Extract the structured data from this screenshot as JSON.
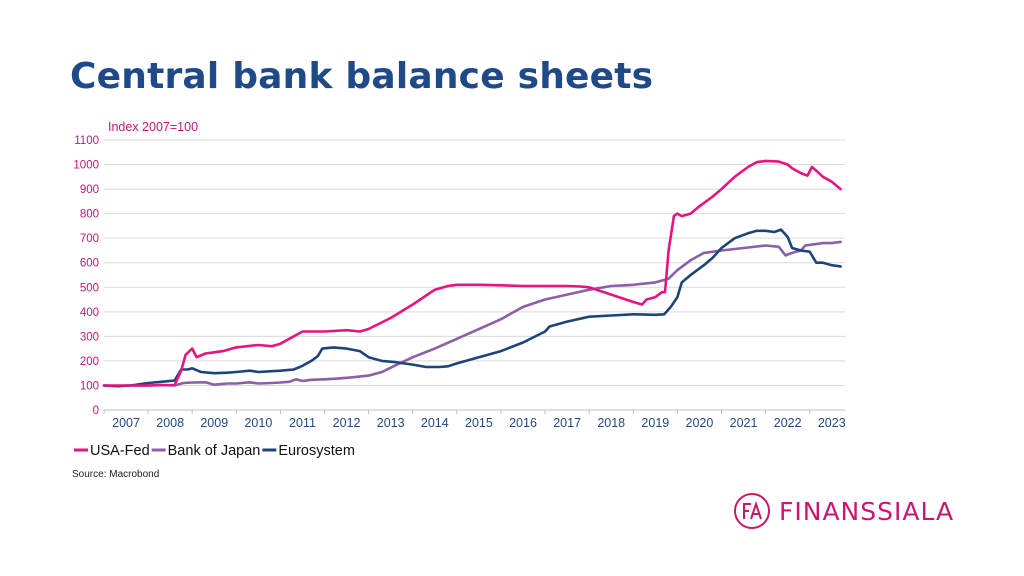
{
  "title": "Central bank balance sheets",
  "source": "Source: Macrobond",
  "logo": {
    "mark": "FA",
    "text": "FINANSSIALA",
    "color": "#c9176f"
  },
  "colors": {
    "title": "#1f4a87",
    "axis_text": "#c0187a",
    "usa": "#e5157f",
    "japan": "#8c5fa6",
    "euro": "#1d4478",
    "grid": "#d9d9d9",
    "year_text": "#1f4a87"
  },
  "chart_data": {
    "type": "line",
    "title": "",
    "ylabel": "Index 2007=100",
    "xlabel": "",
    "ylim": [
      0,
      1100
    ],
    "yticks": [
      0,
      100,
      200,
      300,
      400,
      500,
      600,
      700,
      800,
      900,
      1000,
      1100
    ],
    "xlim": [
      2007.0,
      2023.8
    ],
    "xticks": [
      "2007",
      "2008",
      "2009",
      "2010",
      "2011",
      "2012",
      "2013",
      "2014",
      "2015",
      "2016",
      "2017",
      "2018",
      "2019",
      "2020",
      "2021",
      "2022",
      "2023"
    ],
    "grid": true,
    "legend": "bottom-left",
    "series": [
      {
        "name": "USA-Fed",
        "points": [
          [
            2007.0,
            100
          ],
          [
            2007.5,
            100
          ],
          [
            2008.0,
            100
          ],
          [
            2008.6,
            102
          ],
          [
            2008.75,
            160
          ],
          [
            2008.85,
            225
          ],
          [
            2009.0,
            250
          ],
          [
            2009.1,
            215
          ],
          [
            2009.3,
            230
          ],
          [
            2009.5,
            235
          ],
          [
            2009.7,
            240
          ],
          [
            2010.0,
            255
          ],
          [
            2010.5,
            265
          ],
          [
            2010.8,
            260
          ],
          [
            2011.0,
            270
          ],
          [
            2011.3,
            300
          ],
          [
            2011.5,
            320
          ],
          [
            2011.8,
            320
          ],
          [
            2012.0,
            320
          ],
          [
            2012.5,
            325
          ],
          [
            2012.8,
            320
          ],
          [
            2013.0,
            330
          ],
          [
            2013.5,
            375
          ],
          [
            2014.0,
            430
          ],
          [
            2014.5,
            490
          ],
          [
            2014.8,
            505
          ],
          [
            2015.0,
            510
          ],
          [
            2015.5,
            510
          ],
          [
            2016.0,
            508
          ],
          [
            2016.5,
            505
          ],
          [
            2017.0,
            505
          ],
          [
            2017.5,
            505
          ],
          [
            2017.8,
            503
          ],
          [
            2018.0,
            500
          ],
          [
            2018.5,
            470
          ],
          [
            2019.0,
            440
          ],
          [
            2019.2,
            430
          ],
          [
            2019.3,
            450
          ],
          [
            2019.5,
            460
          ],
          [
            2019.65,
            480
          ],
          [
            2019.72,
            480
          ],
          [
            2019.8,
            650
          ],
          [
            2019.92,
            790
          ],
          [
            2020.0,
            800
          ],
          [
            2020.1,
            790
          ],
          [
            2020.3,
            800
          ],
          [
            2020.5,
            830
          ],
          [
            2020.8,
            870
          ],
          [
            2021.0,
            900
          ],
          [
            2021.3,
            950
          ],
          [
            2021.6,
            990
          ],
          [
            2021.8,
            1010
          ],
          [
            2022.0,
            1015
          ],
          [
            2022.3,
            1012
          ],
          [
            2022.5,
            1000
          ],
          [
            2022.6,
            985
          ],
          [
            2022.8,
            965
          ],
          [
            2022.95,
            955
          ],
          [
            2023.05,
            990
          ],
          [
            2023.15,
            975
          ],
          [
            2023.3,
            950
          ],
          [
            2023.5,
            930
          ],
          [
            2023.7,
            900
          ]
        ]
      },
      {
        "name": "Bank of Japan",
        "points": [
          [
            2007.0,
            100
          ],
          [
            2007.3,
            98
          ],
          [
            2007.6,
            100
          ],
          [
            2008.0,
            100
          ],
          [
            2008.3,
            102
          ],
          [
            2008.6,
            100
          ],
          [
            2008.8,
            110
          ],
          [
            2009.0,
            112
          ],
          [
            2009.3,
            113
          ],
          [
            2009.5,
            103
          ],
          [
            2009.8,
            108
          ],
          [
            2010.0,
            108
          ],
          [
            2010.3,
            113
          ],
          [
            2010.5,
            108
          ],
          [
            2010.8,
            110
          ],
          [
            2011.0,
            112
          ],
          [
            2011.2,
            115
          ],
          [
            2011.35,
            125
          ],
          [
            2011.5,
            118
          ],
          [
            2011.7,
            123
          ],
          [
            2012.0,
            125
          ],
          [
            2012.3,
            128
          ],
          [
            2012.6,
            133
          ],
          [
            2013.0,
            140
          ],
          [
            2013.3,
            155
          ],
          [
            2013.7,
            190
          ],
          [
            2014.0,
            215
          ],
          [
            2014.5,
            250
          ],
          [
            2015.0,
            290
          ],
          [
            2015.5,
            330
          ],
          [
            2016.0,
            370
          ],
          [
            2016.5,
            420
          ],
          [
            2017.0,
            450
          ],
          [
            2017.5,
            470
          ],
          [
            2018.0,
            490
          ],
          [
            2018.5,
            505
          ],
          [
            2019.0,
            510
          ],
          [
            2019.5,
            520
          ],
          [
            2019.8,
            535
          ],
          [
            2020.0,
            570
          ],
          [
            2020.3,
            610
          ],
          [
            2020.6,
            640
          ],
          [
            2021.0,
            650
          ],
          [
            2021.5,
            660
          ],
          [
            2022.0,
            670
          ],
          [
            2022.3,
            665
          ],
          [
            2022.45,
            630
          ],
          [
            2022.6,
            640
          ],
          [
            2022.8,
            650
          ],
          [
            2022.9,
            670
          ],
          [
            2023.1,
            675
          ],
          [
            2023.3,
            680
          ],
          [
            2023.5,
            680
          ],
          [
            2023.7,
            685
          ]
        ]
      },
      {
        "name": "Eurosystem",
        "points": [
          [
            2007.0,
            100
          ],
          [
            2007.3,
            97
          ],
          [
            2007.6,
            100
          ],
          [
            2008.0,
            110
          ],
          [
            2008.3,
            115
          ],
          [
            2008.6,
            120
          ],
          [
            2008.75,
            165
          ],
          [
            2008.9,
            165
          ],
          [
            2009.0,
            170
          ],
          [
            2009.2,
            155
          ],
          [
            2009.5,
            150
          ],
          [
            2009.8,
            152
          ],
          [
            2010.0,
            155
          ],
          [
            2010.3,
            160
          ],
          [
            2010.5,
            155
          ],
          [
            2010.8,
            158
          ],
          [
            2011.0,
            160
          ],
          [
            2011.3,
            165
          ],
          [
            2011.5,
            180
          ],
          [
            2011.7,
            200
          ],
          [
            2011.85,
            220
          ],
          [
            2011.95,
            250
          ],
          [
            2012.2,
            255
          ],
          [
            2012.5,
            250
          ],
          [
            2012.8,
            240
          ],
          [
            2013.0,
            215
          ],
          [
            2013.3,
            200
          ],
          [
            2013.6,
            195
          ],
          [
            2014.0,
            185
          ],
          [
            2014.3,
            175
          ],
          [
            2014.6,
            175
          ],
          [
            2014.8,
            178
          ],
          [
            2015.0,
            190
          ],
          [
            2015.5,
            215
          ],
          [
            2016.0,
            240
          ],
          [
            2016.5,
            275
          ],
          [
            2017.0,
            320
          ],
          [
            2017.1,
            340
          ],
          [
            2017.5,
            360
          ],
          [
            2018.0,
            380
          ],
          [
            2018.5,
            385
          ],
          [
            2019.0,
            390
          ],
          [
            2019.5,
            388
          ],
          [
            2019.7,
            390
          ],
          [
            2019.85,
            420
          ],
          [
            2020.0,
            460
          ],
          [
            2020.1,
            520
          ],
          [
            2020.3,
            550
          ],
          [
            2020.6,
            590
          ],
          [
            2020.8,
            620
          ],
          [
            2021.0,
            660
          ],
          [
            2021.3,
            700
          ],
          [
            2021.6,
            720
          ],
          [
            2021.8,
            730
          ],
          [
            2022.0,
            730
          ],
          [
            2022.2,
            725
          ],
          [
            2022.35,
            735
          ],
          [
            2022.5,
            705
          ],
          [
            2022.6,
            660
          ],
          [
            2022.8,
            650
          ],
          [
            2023.0,
            645
          ],
          [
            2023.15,
            600
          ],
          [
            2023.3,
            600
          ],
          [
            2023.5,
            590
          ],
          [
            2023.7,
            585
          ]
        ]
      }
    ]
  }
}
